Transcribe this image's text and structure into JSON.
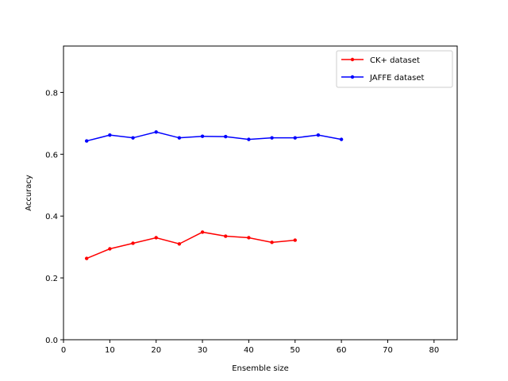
{
  "chart_data": {
    "type": "line",
    "xlabel": "Ensemble size",
    "ylabel": "Accuracy",
    "xlim": [
      0,
      85
    ],
    "ylim": [
      0,
      0.95
    ],
    "xticks": [
      0,
      10,
      20,
      30,
      40,
      50,
      60,
      70,
      80
    ],
    "yticks": [
      0.0,
      0.2,
      0.4,
      0.6,
      0.8
    ],
    "xtick_labels": [
      "0",
      "10",
      "20",
      "30",
      "40",
      "50",
      "60",
      "70",
      "80"
    ],
    "ytick_labels": [
      "0.0",
      "0.2",
      "0.4",
      "0.6",
      "0.8"
    ],
    "grid": false,
    "legend_position": "top-right",
    "series": [
      {
        "name": "CK+ dataset",
        "color": "#ff0000",
        "x": [
          5,
          10,
          15,
          20,
          25,
          30,
          35,
          40,
          45,
          50
        ],
        "y": [
          0.263,
          0.294,
          0.312,
          0.33,
          0.31,
          0.348,
          0.335,
          0.33,
          0.315,
          0.322
        ]
      },
      {
        "name": "JAFFE dataset",
        "color": "#0000ff",
        "x": [
          5,
          10,
          15,
          20,
          25,
          30,
          35,
          40,
          45,
          50,
          55,
          60
        ],
        "y": [
          0.643,
          0.662,
          0.653,
          0.672,
          0.653,
          0.658,
          0.657,
          0.648,
          0.653,
          0.653,
          0.662,
          0.648
        ]
      }
    ]
  }
}
